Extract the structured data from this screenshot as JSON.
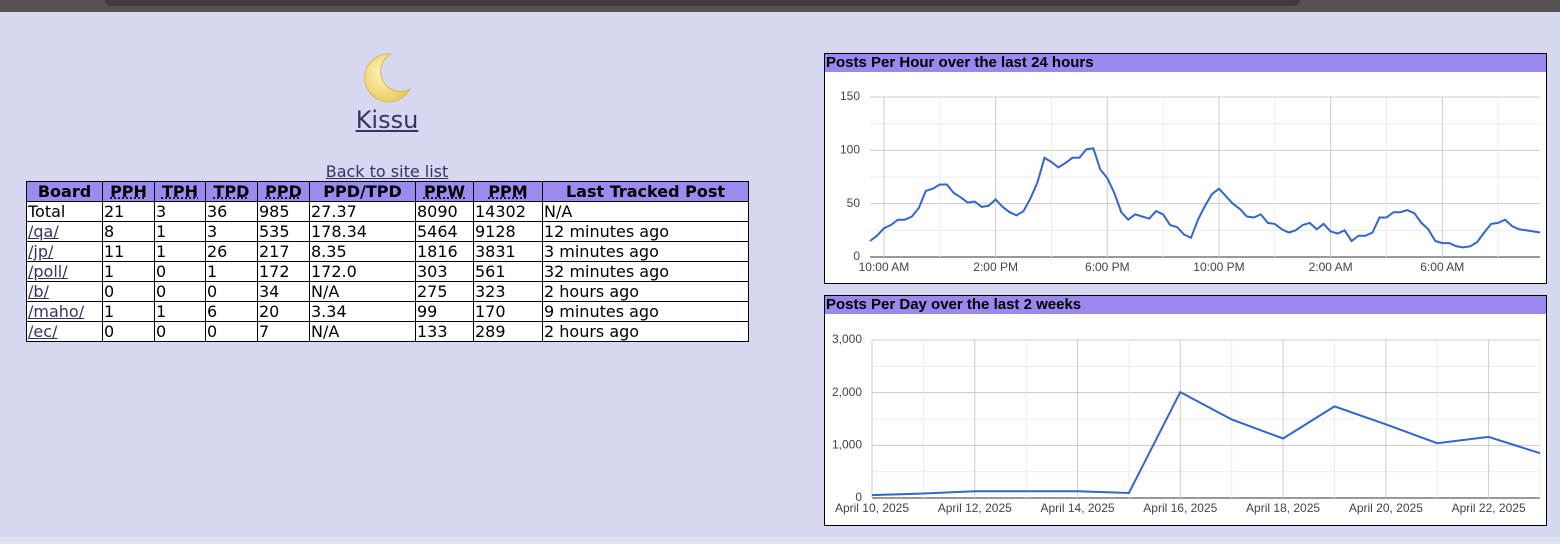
{
  "header": {
    "title": "Kissu",
    "back_link": "Back to site list"
  },
  "table": {
    "columns": [
      "Board",
      "PPH",
      "TPH",
      "TPD",
      "PPD",
      "PPD/TPD",
      "PPW",
      "PPM",
      "Last Tracked Post"
    ],
    "rows": [
      [
        "Total",
        "21",
        "3",
        "36",
        "985",
        "27.37",
        "8090",
        "14302",
        "N/A"
      ],
      [
        "/qa/",
        "8",
        "1",
        "3",
        "535",
        "178.34",
        "5464",
        "9128",
        "12 minutes ago"
      ],
      [
        "/jp/",
        "11",
        "1",
        "26",
        "217",
        "8.35",
        "1816",
        "3831",
        "3 minutes ago"
      ],
      [
        "/poll/",
        "1",
        "0",
        "1",
        "172",
        "172.0",
        "303",
        "561",
        "32 minutes ago"
      ],
      [
        "/b/",
        "0",
        "0",
        "0",
        "34",
        "N/A",
        "275",
        "323",
        "2 hours ago"
      ],
      [
        "/maho/",
        "1",
        "1",
        "6",
        "20",
        "3.34",
        "99",
        "170",
        "9 minutes ago"
      ],
      [
        "/ec/",
        "0",
        "0",
        "0",
        "7",
        "N/A",
        "133",
        "289",
        "2 hours ago"
      ]
    ]
  },
  "chart_data": [
    {
      "type": "line",
      "title": "Posts Per Hour over the last 24 hours",
      "color": "#3366cc",
      "grid": true,
      "categories": [
        null,
        null,
        "10:00 AM",
        null,
        null,
        null,
        null,
        null,
        null,
        null,
        null,
        null,
        null,
        null,
        null,
        null,
        null,
        null,
        "2:00 PM",
        null,
        null,
        null,
        null,
        null,
        null,
        null,
        null,
        null,
        null,
        null,
        null,
        null,
        null,
        null,
        "6:00 PM",
        null,
        null,
        null,
        null,
        null,
        null,
        null,
        null,
        null,
        null,
        null,
        null,
        null,
        null,
        null,
        "10:00 PM",
        null,
        null,
        null,
        null,
        null,
        null,
        null,
        null,
        null,
        null,
        null,
        null,
        null,
        null,
        null,
        "2:00 AM",
        null,
        null,
        null,
        null,
        null,
        null,
        null,
        null,
        null,
        null,
        null,
        null,
        null,
        null,
        null,
        "6:00 AM",
        null,
        null,
        null,
        null,
        null,
        null,
        null,
        null,
        null,
        null,
        null,
        null,
        null,
        null
      ],
      "values": [
        15,
        20,
        27,
        30,
        35,
        35,
        38,
        46,
        62,
        64,
        68,
        68,
        60,
        56,
        51,
        52,
        47,
        48,
        54,
        47,
        42,
        39,
        43,
        55,
        70,
        93,
        89,
        84,
        88,
        93,
        93,
        101,
        102,
        82,
        74,
        60,
        42,
        35,
        40,
        38,
        36,
        43,
        40,
        30,
        28,
        21,
        18,
        35,
        48,
        59,
        64,
        57,
        50,
        45,
        38,
        37,
        40,
        32,
        31,
        26,
        23,
        25,
        30,
        32,
        26,
        31,
        24,
        22,
        25,
        15,
        20,
        20,
        23,
        37,
        37,
        42,
        42,
        44,
        41,
        32,
        26,
        15,
        13,
        13,
        10,
        9,
        10,
        14,
        23,
        31,
        32,
        35,
        29,
        26,
        25,
        24,
        23
      ],
      "ylim": [
        0,
        150
      ],
      "yticks": [
        0,
        50,
        100,
        150
      ]
    },
    {
      "type": "line",
      "title": "Posts Per Day over the last 2 weeks",
      "color": "#3366cc",
      "grid": true,
      "categories": [
        "April 10, 2025",
        null,
        "April 12, 2025",
        null,
        "April 14, 2025",
        null,
        "April 16, 2025",
        null,
        "April 18, 2025",
        null,
        "April 20, 2025",
        null,
        "April 22, 2025",
        null
      ],
      "values": [
        55,
        85,
        130,
        130,
        130,
        95,
        2010,
        1490,
        1130,
        1740,
        1400,
        1040,
        1160,
        850
      ],
      "ylim": [
        0,
        3000
      ],
      "yticks": [
        0,
        {
          "value": 1000,
          "label": "1,000"
        },
        {
          "value": 2000,
          "label": "2,000"
        },
        {
          "value": 3000,
          "label": "3,000"
        }
      ]
    }
  ]
}
